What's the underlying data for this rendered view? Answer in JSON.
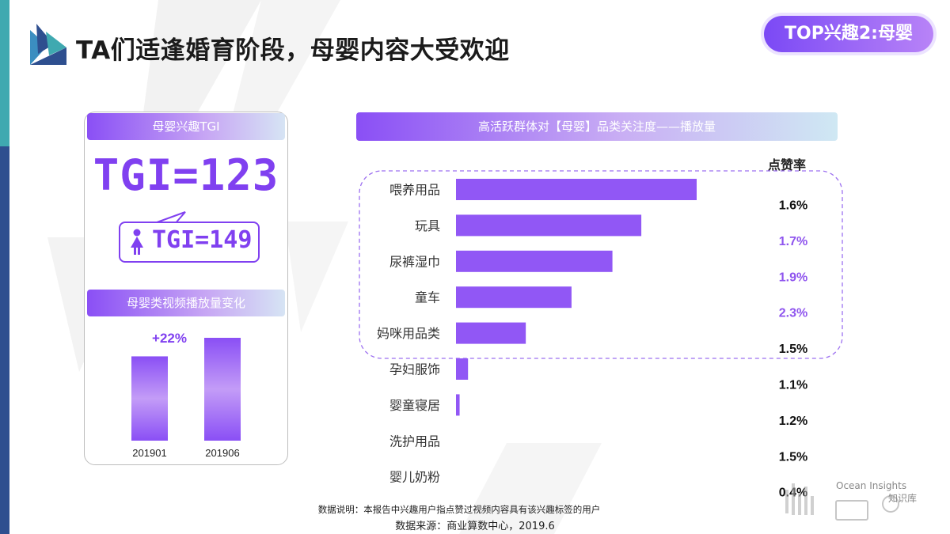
{
  "header": {
    "title": "TA们适逢婚育阶段，母婴内容大受欢迎",
    "badge": "TOP兴趣2:母婴"
  },
  "left_panel": {
    "tgi_header": "母婴兴趣TGI",
    "tgi_value": "TGI=123",
    "female_tgi": "TGI=149",
    "growth_header": "母婴类视频播放量变化"
  },
  "right_panel": {
    "header": "高活跃群体对【母婴】品类关注度——播放量",
    "likes_header": "点赞率"
  },
  "chart_data": [
    {
      "type": "bar",
      "title": "母婴类视频播放量变化",
      "categories": [
        "201901",
        "201906"
      ],
      "values": [
        100,
        122
      ],
      "annotation": "+22%"
    },
    {
      "type": "bar",
      "orientation": "horizontal",
      "title": "高活跃群体对【母婴】品类关注度——播放量",
      "categories": [
        "喂养用品",
        "玩具",
        "尿裤湿巾",
        "童车",
        "妈咪用品类",
        "孕妇服饰",
        "婴童寝居",
        "洗护用品",
        "婴儿奶粉"
      ],
      "values": [
        100,
        77,
        65,
        48,
        29,
        5,
        1.5,
        0,
        0
      ],
      "series": [
        {
          "name": "点赞率",
          "values": [
            "1.6%",
            "1.7%",
            "1.9%",
            "2.3%",
            "1.5%",
            "1.1%",
            "1.2%",
            "1.5%",
            "0.4%"
          ]
        }
      ],
      "highlighted_likes": [
        false,
        true,
        true,
        true,
        false,
        false,
        false,
        false,
        false
      ],
      "highlighted_group": [
        "喂养用品",
        "玩具",
        "尿裤湿巾",
        "童车",
        "妈咪用品类"
      ]
    }
  ],
  "footer": {
    "note": "数据说明：本报告中兴趣用户指点赞过视频内容具有该兴趣标签的用户",
    "source": "数据来源：商业算数中心，2019.6"
  },
  "watermark": {
    "brand_en": "Ocean Insights",
    "brand_cn": "知识库"
  },
  "colors": {
    "purple": "#8040f0",
    "bar": "#9157f5",
    "highlight_like": "#8f55ee",
    "strip_top": "#3fa9b0",
    "strip_bottom": "#2e4f8f"
  }
}
